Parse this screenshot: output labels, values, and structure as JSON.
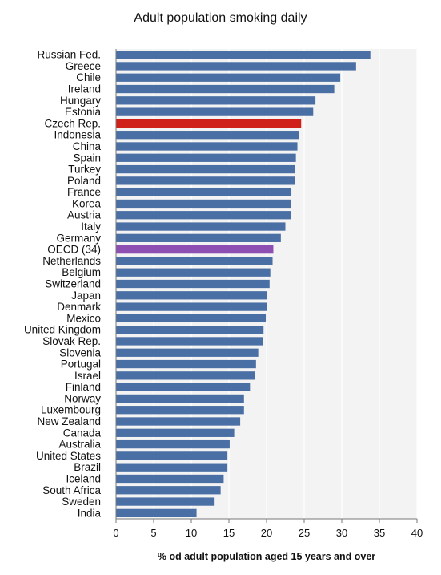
{
  "chart_data": {
    "type": "bar",
    "orientation": "horizontal",
    "title": "Adult population smoking daily",
    "xlabel": "% od adult population aged 15 years and over",
    "ylabel": "",
    "xlim": [
      0,
      40
    ],
    "xticks": [
      0,
      5,
      10,
      15,
      20,
      25,
      30,
      35,
      40
    ],
    "grid": true,
    "legend": "none",
    "default_color": "#4a6fa5",
    "categories": [
      "Russian Fed.",
      "Greece",
      "Chile",
      "Ireland",
      "Hungary",
      "Estonia",
      "Czech Rep.",
      "Indonesia",
      "China",
      "Spain",
      "Turkey",
      "Poland",
      "France",
      "Korea",
      "Austria",
      "Italy",
      "Germany",
      "OECD (34)",
      "Netherlands",
      "Belgium",
      "Switzerland",
      "Japan",
      "Denmark",
      "Mexico",
      "United Kingdom",
      "Slovak Rep.",
      "Slovenia",
      "Portugal",
      "Israel",
      "Finland",
      "Norway",
      "Luxembourg",
      "New Zealand",
      "Canada",
      "Australia",
      "United States",
      "Brazil",
      "Iceland",
      "South Africa",
      "Sweden",
      "India"
    ],
    "values": [
      33.8,
      31.9,
      29.8,
      29.0,
      26.5,
      26.2,
      24.6,
      24.3,
      24.1,
      23.9,
      23.8,
      23.8,
      23.3,
      23.2,
      23.2,
      22.5,
      21.9,
      20.9,
      20.8,
      20.5,
      20.4,
      20.1,
      20.0,
      19.9,
      19.6,
      19.5,
      18.9,
      18.6,
      18.5,
      17.8,
      17.0,
      17.0,
      16.5,
      15.7,
      15.1,
      14.8,
      14.8,
      14.3,
      13.9,
      13.1,
      10.7
    ],
    "highlights": {
      "Czech Rep.": "#d0201a",
      "OECD (34)": "#8e4fb3"
    }
  }
}
